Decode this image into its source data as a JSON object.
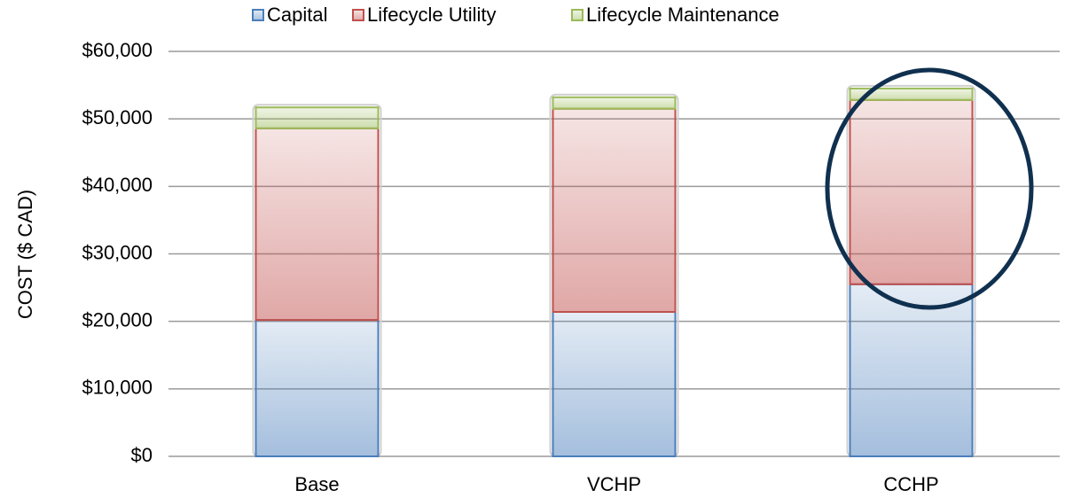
{
  "chart_data": {
    "type": "stacked_bar",
    "y_label": "COST ($ CAD)",
    "categories": [
      "Base",
      "VCHP",
      "CCHP"
    ],
    "series": [
      {
        "name": "Capital",
        "color": "#4a7ebb",
        "values": [
          20200,
          21400,
          25500
        ]
      },
      {
        "name": "Lifecycle Utility",
        "color": "#c0504d",
        "values": [
          28400,
          30100,
          27300
        ]
      },
      {
        "name": "Lifecycle Maintenance",
        "color": "#9bbb59",
        "values": [
          3100,
          1700,
          1700
        ]
      }
    ],
    "ylim": [
      0,
      60000
    ],
    "yticks": [
      {
        "value": 0,
        "label": "$0"
      },
      {
        "value": 10000,
        "label": "$10,000"
      },
      {
        "value": 20000,
        "label": "$20,000"
      },
      {
        "value": 30000,
        "label": "$30,000"
      },
      {
        "value": 40000,
        "label": "$40,000"
      },
      {
        "value": 50000,
        "label": "$50,000"
      },
      {
        "value": 60000,
        "label": "$60,000"
      }
    ],
    "grid": true,
    "legend": "top"
  }
}
